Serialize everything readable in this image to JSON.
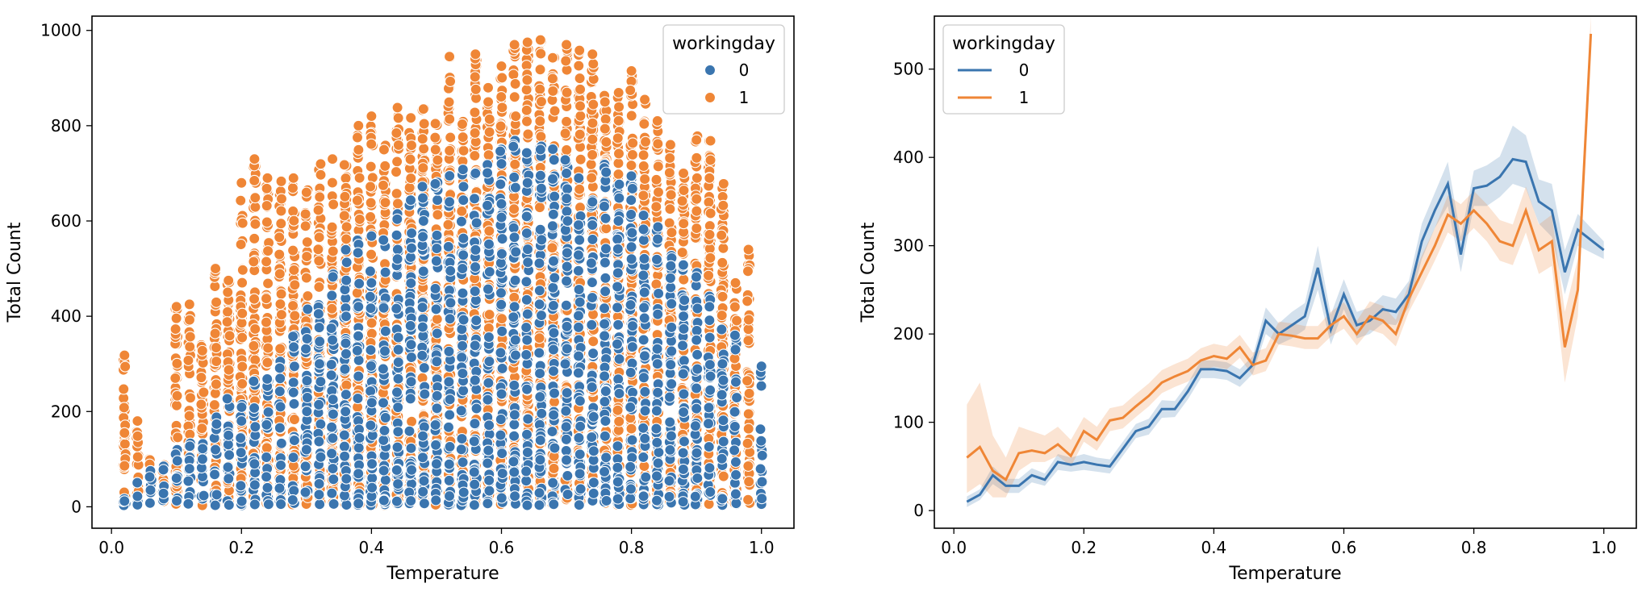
{
  "colors": {
    "series_0": "#3a75af",
    "series_1": "#ef8636"
  },
  "chart_data": [
    {
      "type": "scatter",
      "xlabel": "Temperature",
      "ylabel": "Total Count",
      "xlim": [
        -0.03,
        1.05
      ],
      "ylim": [
        -45,
        1030
      ],
      "xticks": [
        0.0,
        0.2,
        0.4,
        0.6,
        0.8,
        1.0
      ],
      "xtick_labels": [
        "0.0",
        "0.2",
        "0.4",
        "0.6",
        "0.8",
        "1.0"
      ],
      "yticks": [
        0,
        200,
        400,
        600,
        800,
        1000
      ],
      "ytick_labels": [
        "0",
        "200",
        "400",
        "600",
        "800",
        "1000"
      ],
      "legend_title": "workingday",
      "legend_position": "top-right",
      "series": [
        {
          "name": "0",
          "temp_values": [
            0.02,
            0.04,
            0.06,
            0.08,
            0.1,
            0.12,
            0.14,
            0.16,
            0.18,
            0.2,
            0.22,
            0.24,
            0.26,
            0.28,
            0.3,
            0.32,
            0.34,
            0.36,
            0.38,
            0.4,
            0.42,
            0.44,
            0.46,
            0.48,
            0.5,
            0.52,
            0.54,
            0.56,
            0.58,
            0.6,
            0.62,
            0.64,
            0.66,
            0.68,
            0.7,
            0.72,
            0.74,
            0.76,
            0.78,
            0.8,
            0.82,
            0.84,
            0.86,
            0.88,
            0.9,
            0.92,
            0.94,
            0.96,
            1.0
          ],
          "max_counts": [
            30,
            55,
            80,
            90,
            120,
            150,
            170,
            190,
            230,
            250,
            270,
            300,
            320,
            360,
            420,
            470,
            520,
            540,
            560,
            580,
            560,
            620,
            650,
            680,
            690,
            720,
            760,
            700,
            730,
            760,
            780,
            760,
            790,
            760,
            750,
            700,
            730,
            720,
            700,
            700,
            640,
            600,
            560,
            530,
            500,
            450,
            380,
            360,
            295
          ],
          "min_count": 3,
          "points": [
            [
              0.02,
              12
            ],
            [
              0.04,
              22
            ],
            [
              0.06,
              35
            ],
            [
              0.08,
              28
            ],
            [
              0.1,
              60
            ],
            [
              0.12,
              80
            ],
            [
              0.14,
              100
            ],
            [
              0.16,
              120
            ],
            [
              0.18,
              150
            ],
            [
              0.2,
              180
            ],
            [
              0.22,
              90
            ],
            [
              0.24,
              40
            ],
            [
              0.26,
              210
            ],
            [
              0.28,
              240
            ],
            [
              0.3,
              120
            ],
            [
              0.32,
              300
            ],
            [
              0.34,
              350
            ],
            [
              0.36,
              200
            ],
            [
              0.38,
              420
            ],
            [
              0.4,
              470
            ],
            [
              0.42,
              160
            ],
            [
              0.44,
              520
            ],
            [
              0.46,
              380
            ],
            [
              0.48,
              600
            ],
            [
              0.5,
              90
            ],
            [
              0.52,
              640
            ],
            [
              0.54,
              500
            ],
            [
              0.56,
              700
            ],
            [
              0.58,
              260
            ],
            [
              0.6,
              720
            ],
            [
              0.62,
              420
            ],
            [
              0.64,
              680
            ],
            [
              0.66,
              750
            ],
            [
              0.68,
              330
            ],
            [
              0.7,
              700
            ],
            [
              0.72,
              560
            ],
            [
              0.74,
              640
            ],
            [
              0.76,
              180
            ],
            [
              0.78,
              600
            ],
            [
              0.8,
              520
            ],
            [
              0.82,
              450
            ],
            [
              0.84,
              300
            ],
            [
              0.86,
              480
            ],
            [
              0.88,
              400
            ],
            [
              0.9,
              350
            ],
            [
              0.92,
              420
            ],
            [
              0.94,
              300
            ],
            [
              0.96,
              330
            ],
            [
              1.0,
              295
            ]
          ]
        },
        {
          "name": "1",
          "temp_values": [
            0.02,
            0.04,
            0.06,
            0.08,
            0.1,
            0.12,
            0.14,
            0.16,
            0.18,
            0.2,
            0.22,
            0.24,
            0.26,
            0.28,
            0.3,
            0.32,
            0.34,
            0.36,
            0.38,
            0.4,
            0.42,
            0.44,
            0.46,
            0.48,
            0.5,
            0.52,
            0.54,
            0.56,
            0.58,
            0.6,
            0.62,
            0.64,
            0.66,
            0.68,
            0.7,
            0.72,
            0.74,
            0.76,
            0.78,
            0.8,
            0.82,
            0.84,
            0.86,
            0.88,
            0.9,
            0.92,
            0.94,
            0.96,
            0.98
          ],
          "max_counts": [
            320,
            180,
            100,
            90,
            420,
            425,
            350,
            500,
            480,
            680,
            730,
            690,
            690,
            690,
            670,
            720,
            730,
            720,
            800,
            820,
            760,
            840,
            840,
            840,
            810,
            945,
            840,
            950,
            880,
            920,
            970,
            975,
            980,
            960,
            970,
            960,
            950,
            870,
            880,
            915,
            860,
            810,
            760,
            700,
            780,
            770,
            690,
            470,
            540
          ],
          "min_count": 3,
          "points": [
            [
              0.02,
              318
            ],
            [
              0.02,
              155
            ],
            [
              0.02,
              86
            ],
            [
              0.04,
              180
            ],
            [
              0.1,
              420
            ],
            [
              0.12,
              425
            ],
            [
              0.16,
              500
            ],
            [
              0.18,
              475
            ],
            [
              0.2,
              680
            ],
            [
              0.22,
              730
            ],
            [
              0.24,
              690
            ],
            [
              0.28,
              690
            ],
            [
              0.3,
              660
            ],
            [
              0.34,
              730
            ],
            [
              0.38,
              800
            ],
            [
              0.4,
              820
            ],
            [
              0.44,
              838
            ],
            [
              0.48,
              835
            ],
            [
              0.52,
              945
            ],
            [
              0.56,
              950
            ],
            [
              0.6,
              925
            ],
            [
              0.62,
              970
            ],
            [
              0.64,
              975
            ],
            [
              0.66,
              980
            ],
            [
              0.7,
              970
            ],
            [
              0.72,
              958
            ],
            [
              0.74,
              950
            ],
            [
              0.8,
              915
            ],
            [
              0.84,
              810
            ],
            [
              0.86,
              760
            ],
            [
              0.88,
              700
            ],
            [
              0.9,
              770
            ],
            [
              0.92,
              690
            ],
            [
              0.96,
              470
            ],
            [
              0.98,
              540
            ]
          ]
        }
      ]
    },
    {
      "type": "line",
      "xlabel": "Temperature",
      "ylabel": "Total Count",
      "xlim": [
        -0.03,
        1.05
      ],
      "ylim": [
        -20,
        560
      ],
      "xticks": [
        0.0,
        0.2,
        0.4,
        0.6,
        0.8,
        1.0
      ],
      "xtick_labels": [
        "0.0",
        "0.2",
        "0.4",
        "0.6",
        "0.8",
        "1.0"
      ],
      "yticks": [
        0,
        100,
        200,
        300,
        400,
        500
      ],
      "ytick_labels": [
        "0",
        "100",
        "200",
        "300",
        "400",
        "500"
      ],
      "legend_title": "workingday",
      "legend_position": "top-left",
      "confidence_band": true,
      "series": [
        {
          "name": "0",
          "x": [
            0.02,
            0.04,
            0.06,
            0.08,
            0.1,
            0.12,
            0.14,
            0.16,
            0.18,
            0.2,
            0.22,
            0.24,
            0.26,
            0.28,
            0.3,
            0.32,
            0.34,
            0.36,
            0.38,
            0.4,
            0.42,
            0.44,
            0.46,
            0.48,
            0.5,
            0.52,
            0.54,
            0.56,
            0.58,
            0.6,
            0.62,
            0.64,
            0.66,
            0.68,
            0.7,
            0.72,
            0.74,
            0.76,
            0.78,
            0.8,
            0.82,
            0.84,
            0.86,
            0.88,
            0.9,
            0.92,
            0.94,
            0.96,
            1.0
          ],
          "y": [
            10,
            18,
            40,
            28,
            28,
            40,
            35,
            55,
            52,
            55,
            52,
            50,
            70,
            90,
            95,
            115,
            115,
            135,
            160,
            160,
            158,
            150,
            165,
            215,
            200,
            210,
            220,
            275,
            205,
            245,
            210,
            215,
            228,
            225,
            245,
            305,
            340,
            370,
            290,
            365,
            368,
            378,
            398,
            395,
            350,
            340,
            270,
            318,
            295
          ],
          "ci_lower": [
            4,
            12,
            30,
            20,
            20,
            32,
            28,
            46,
            44,
            46,
            44,
            42,
            62,
            82,
            86,
            105,
            106,
            126,
            150,
            150,
            148,
            140,
            155,
            200,
            188,
            195,
            205,
            250,
            188,
            228,
            195,
            200,
            212,
            210,
            230,
            285,
            320,
            345,
            270,
            345,
            345,
            355,
            370,
            365,
            325,
            310,
            245,
            300,
            285
          ],
          "ci_upper": [
            16,
            24,
            50,
            36,
            36,
            48,
            42,
            64,
            60,
            64,
            60,
            58,
            78,
            98,
            104,
            125,
            124,
            144,
            170,
            170,
            168,
            160,
            175,
            230,
            212,
            225,
            235,
            300,
            222,
            262,
            225,
            230,
            244,
            240,
            260,
            325,
            360,
            395,
            310,
            385,
            391,
            401,
            436,
            425,
            375,
            370,
            295,
            336,
            305
          ]
        },
        {
          "name": "1",
          "x": [
            0.02,
            0.04,
            0.06,
            0.08,
            0.1,
            0.12,
            0.14,
            0.16,
            0.18,
            0.2,
            0.22,
            0.24,
            0.26,
            0.28,
            0.3,
            0.32,
            0.34,
            0.36,
            0.38,
            0.4,
            0.42,
            0.44,
            0.46,
            0.48,
            0.5,
            0.52,
            0.54,
            0.56,
            0.58,
            0.6,
            0.62,
            0.64,
            0.66,
            0.68,
            0.7,
            0.72,
            0.74,
            0.76,
            0.78,
            0.8,
            0.82,
            0.84,
            0.86,
            0.88,
            0.9,
            0.92,
            0.94,
            0.96,
            0.98
          ],
          "y": [
            60,
            72,
            45,
            35,
            65,
            68,
            65,
            75,
            62,
            90,
            80,
            102,
            105,
            118,
            130,
            145,
            152,
            158,
            170,
            175,
            172,
            185,
            165,
            170,
            200,
            198,
            195,
            195,
            210,
            220,
            200,
            220,
            215,
            200,
            240,
            270,
            300,
            335,
            325,
            340,
            325,
            305,
            300,
            340,
            295,
            305,
            185,
            250,
            540
          ],
          "ci_lower": [
            20,
            30,
            15,
            15,
            45,
            55,
            55,
            62,
            50,
            78,
            68,
            90,
            93,
            106,
            118,
            133,
            140,
            146,
            158,
            163,
            160,
            173,
            153,
            158,
            188,
            186,
            183,
            183,
            197,
            206,
            187,
            205,
            200,
            186,
            225,
            253,
            283,
            315,
            305,
            320,
            305,
            283,
            278,
            315,
            268,
            277,
            145,
            220,
            520
          ],
          "ci_upper": [
            120,
            145,
            85,
            60,
            95,
            90,
            85,
            95,
            80,
            106,
            95,
            116,
            119,
            132,
            144,
            159,
            166,
            172,
            184,
            189,
            186,
            199,
            179,
            184,
            214,
            212,
            209,
            209,
            225,
            236,
            215,
            237,
            232,
            216,
            257,
            289,
            320,
            357,
            347,
            362,
            347,
            329,
            324,
            367,
            324,
            335,
            225,
            285,
            560
          ]
        }
      ]
    }
  ]
}
